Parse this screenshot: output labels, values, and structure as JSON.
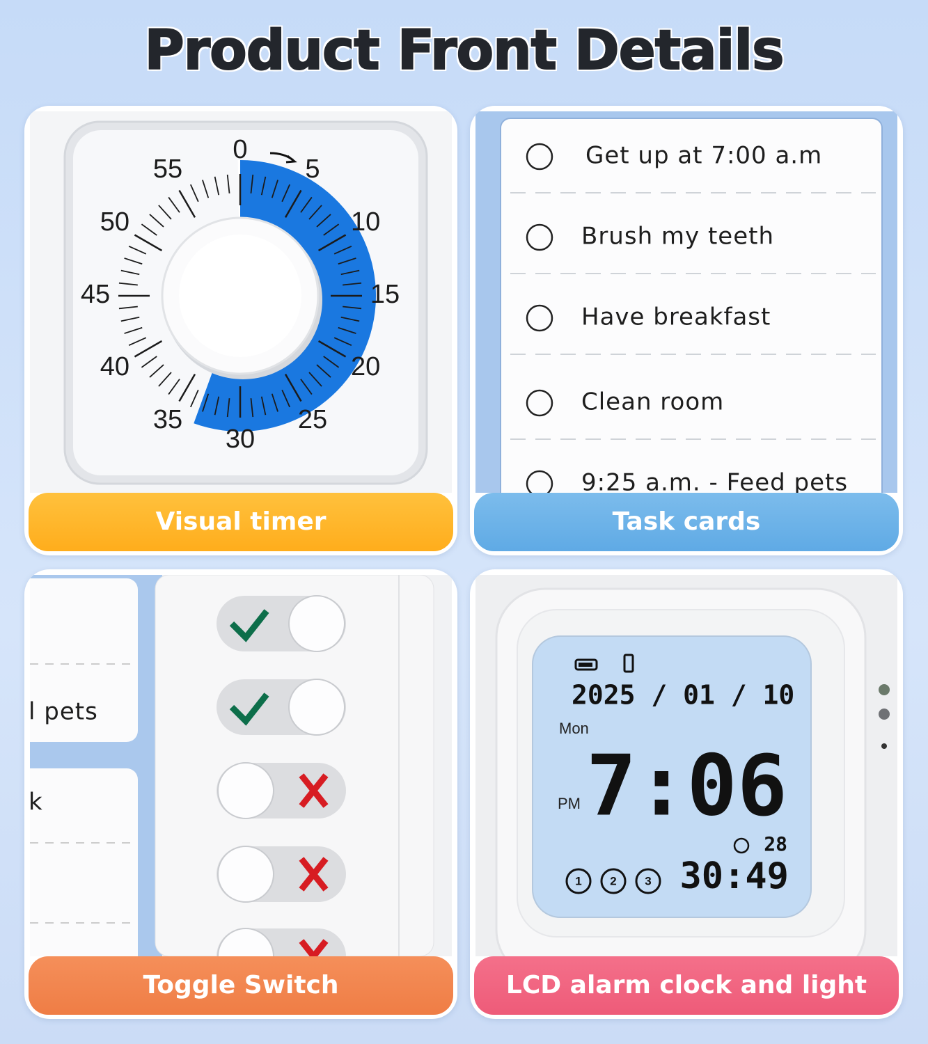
{
  "header": {
    "title": "Product Front Details"
  },
  "panels": [
    {
      "label": "Visual timer",
      "dial_numbers": [
        "0",
        "5",
        "10",
        "15",
        "20",
        "25",
        "30",
        "35",
        "40",
        "45",
        "50",
        "55"
      ]
    },
    {
      "label": "Task cards",
      "tasks": [
        "Get up at 7:00 a.m",
        "Brush my teeth",
        "Have breakfast",
        "Clean room",
        "9:25 a.m. - Feed pets"
      ]
    },
    {
      "label": "Toggle Switch",
      "card_texts": [
        "l pets",
        "k"
      ]
    },
    {
      "label": "LCD alarm clock and light",
      "lcd": {
        "date": "2025 / 01 / 10",
        "weekday": "Mon",
        "period": "PM",
        "time": "7:06",
        "counter": "28",
        "countdown": "30:49",
        "alarms": [
          "1",
          "2",
          "3"
        ]
      }
    }
  ]
}
